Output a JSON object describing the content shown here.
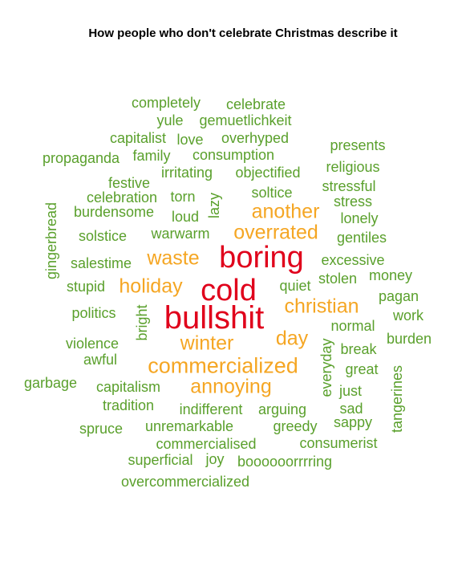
{
  "chart_data": {
    "type": "wordcloud",
    "title": "How people who don't celebrate Christmas describe it",
    "colors": {
      "high": "#e0001b",
      "mid": "#f5a623",
      "low": "#5aa02c"
    },
    "words": [
      {
        "text": "bullshit",
        "freq": 10,
        "color": "high"
      },
      {
        "text": "boring",
        "freq": 9,
        "color": "high"
      },
      {
        "text": "cold",
        "freq": 9,
        "color": "high"
      },
      {
        "text": "commercialized",
        "freq": 6,
        "color": "mid"
      },
      {
        "text": "christian",
        "freq": 5,
        "color": "mid"
      },
      {
        "text": "annoying",
        "freq": 5,
        "color": "mid"
      },
      {
        "text": "another",
        "freq": 5,
        "color": "mid"
      },
      {
        "text": "overrated",
        "freq": 5,
        "color": "mid"
      },
      {
        "text": "waste",
        "freq": 5,
        "color": "mid"
      },
      {
        "text": "holiday",
        "freq": 5,
        "color": "mid"
      },
      {
        "text": "winter",
        "freq": 5,
        "color": "mid"
      },
      {
        "text": "day",
        "freq": 5,
        "color": "mid"
      },
      {
        "text": "completely",
        "freq": 2,
        "color": "low"
      },
      {
        "text": "celebrate",
        "freq": 2,
        "color": "low"
      },
      {
        "text": "yule",
        "freq": 2,
        "color": "low"
      },
      {
        "text": "gemuetlichkeit",
        "freq": 2,
        "color": "low"
      },
      {
        "text": "capitalist",
        "freq": 2,
        "color": "low"
      },
      {
        "text": "love",
        "freq": 2,
        "color": "low"
      },
      {
        "text": "overhyped",
        "freq": 2,
        "color": "low"
      },
      {
        "text": "presents",
        "freq": 2,
        "color": "low"
      },
      {
        "text": "propaganda",
        "freq": 2,
        "color": "low"
      },
      {
        "text": "family",
        "freq": 2,
        "color": "low"
      },
      {
        "text": "consumption",
        "freq": 2,
        "color": "low"
      },
      {
        "text": "religious",
        "freq": 2,
        "color": "low"
      },
      {
        "text": "festive",
        "freq": 2,
        "color": "low"
      },
      {
        "text": "irritating",
        "freq": 2,
        "color": "low"
      },
      {
        "text": "objectified",
        "freq": 2,
        "color": "low"
      },
      {
        "text": "stressful",
        "freq": 2,
        "color": "low"
      },
      {
        "text": "celebration",
        "freq": 2,
        "color": "low"
      },
      {
        "text": "torn",
        "freq": 2,
        "color": "low"
      },
      {
        "text": "soltice",
        "freq": 2,
        "color": "low"
      },
      {
        "text": "stress",
        "freq": 2,
        "color": "low"
      },
      {
        "text": "burdensome",
        "freq": 2,
        "color": "low"
      },
      {
        "text": "loud",
        "freq": 2,
        "color": "low"
      },
      {
        "text": "lazy",
        "freq": 2,
        "color": "low"
      },
      {
        "text": "lonely",
        "freq": 2,
        "color": "low"
      },
      {
        "text": "gingerbread",
        "freq": 2,
        "color": "low"
      },
      {
        "text": "solstice",
        "freq": 2,
        "color": "low"
      },
      {
        "text": "warwarm",
        "freq": 2,
        "color": "low"
      },
      {
        "text": "gentiles",
        "freq": 2,
        "color": "low"
      },
      {
        "text": "salestime",
        "freq": 2,
        "color": "low"
      },
      {
        "text": "excessive",
        "freq": 2,
        "color": "low"
      },
      {
        "text": "money",
        "freq": 2,
        "color": "low"
      },
      {
        "text": "stupid",
        "freq": 2,
        "color": "low"
      },
      {
        "text": "quiet",
        "freq": 2,
        "color": "low"
      },
      {
        "text": "stolen",
        "freq": 2,
        "color": "low"
      },
      {
        "text": "pagan",
        "freq": 2,
        "color": "low"
      },
      {
        "text": "politics",
        "freq": 2,
        "color": "low"
      },
      {
        "text": "bright",
        "freq": 2,
        "color": "low"
      },
      {
        "text": "work",
        "freq": 2,
        "color": "low"
      },
      {
        "text": "normal",
        "freq": 2,
        "color": "low"
      },
      {
        "text": "violence",
        "freq": 2,
        "color": "low"
      },
      {
        "text": "burden",
        "freq": 2,
        "color": "low"
      },
      {
        "text": "break",
        "freq": 2,
        "color": "low"
      },
      {
        "text": "awful",
        "freq": 2,
        "color": "low"
      },
      {
        "text": "everyday",
        "freq": 2,
        "color": "low"
      },
      {
        "text": "great",
        "freq": 2,
        "color": "low"
      },
      {
        "text": "garbage",
        "freq": 2,
        "color": "low"
      },
      {
        "text": "capitalism",
        "freq": 2,
        "color": "low"
      },
      {
        "text": "just",
        "freq": 2,
        "color": "low"
      },
      {
        "text": "tangerines",
        "freq": 2,
        "color": "low"
      },
      {
        "text": "tradition",
        "freq": 2,
        "color": "low"
      },
      {
        "text": "indifferent",
        "freq": 2,
        "color": "low"
      },
      {
        "text": "arguing",
        "freq": 2,
        "color": "low"
      },
      {
        "text": "sad",
        "freq": 2,
        "color": "low"
      },
      {
        "text": "spruce",
        "freq": 2,
        "color": "low"
      },
      {
        "text": "unremarkable",
        "freq": 2,
        "color": "low"
      },
      {
        "text": "greedy",
        "freq": 2,
        "color": "low"
      },
      {
        "text": "sappy",
        "freq": 2,
        "color": "low"
      },
      {
        "text": "commercialised",
        "freq": 2,
        "color": "low"
      },
      {
        "text": "consumerist",
        "freq": 2,
        "color": "low"
      },
      {
        "text": "superficial",
        "freq": 2,
        "color": "low"
      },
      {
        "text": "joy",
        "freq": 2,
        "color": "low"
      },
      {
        "text": "boooooorrrring",
        "freq": 2,
        "color": "low"
      },
      {
        "text": "overcommercialized",
        "freq": 2,
        "color": "low"
      }
    ]
  }
}
